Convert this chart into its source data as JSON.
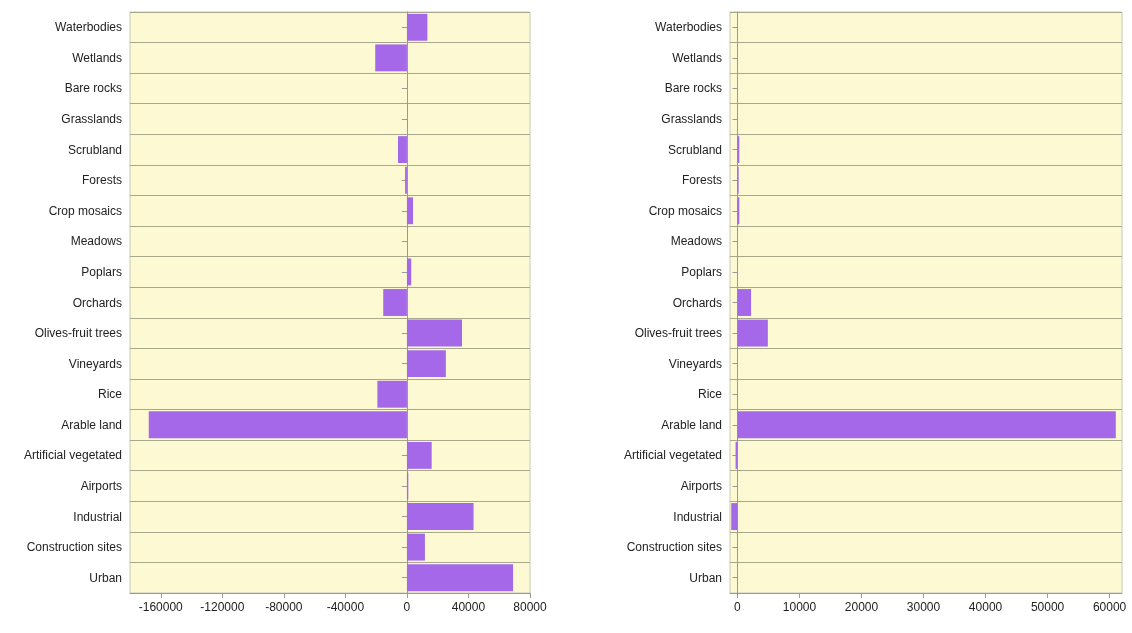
{
  "chart_data": [
    {
      "type": "bar",
      "orientation": "horizontal",
      "grid": "y",
      "categories": [
        "Waterbodies",
        "Wetlands",
        "Bare rocks",
        "Grasslands",
        "Scrubland",
        "Forests",
        "Crop mosaics",
        "Meadows",
        "Poplars",
        "Orchards",
        "Olives-fruit trees",
        "Vineyards",
        "Rice",
        "Arable land",
        "Artificial vegetated",
        "Airports",
        "Industrial",
        "Construction sites",
        "Urban"
      ],
      "values": [
        13300,
        -20600,
        0,
        0,
        -5800,
        -1200,
        4000,
        0,
        2800,
        -15400,
        35800,
        25300,
        -19200,
        -167800,
        16100,
        900,
        43300,
        11700,
        69000
      ],
      "color": "#a468e8",
      "xlim": [
        -180000,
        80000
      ],
      "xticks": [
        -160000,
        -120000,
        -80000,
        -40000,
        0,
        40000,
        80000
      ]
    },
    {
      "type": "bar",
      "orientation": "horizontal",
      "grid": "y",
      "categories": [
        "Waterbodies",
        "Wetlands",
        "Bare rocks",
        "Grasslands",
        "Scrubland",
        "Forests",
        "Crop mosaics",
        "Meadows",
        "Poplars",
        "Orchards",
        "Olives-fruit trees",
        "Vineyards",
        "Rice",
        "Arable land",
        "Artificial vegetated",
        "Airports",
        "Industrial",
        "Construction sites",
        "Urban"
      ],
      "values": [
        0,
        0,
        0,
        0,
        300,
        200,
        300,
        0,
        0,
        2200,
        4900,
        0,
        0,
        61000,
        -300,
        0,
        -1000,
        0,
        0
      ],
      "color": "#a468e8",
      "xlim": [
        -1200,
        62000
      ],
      "xticks": [
        0,
        10000,
        20000,
        30000,
        40000,
        50000,
        60000
      ]
    }
  ]
}
